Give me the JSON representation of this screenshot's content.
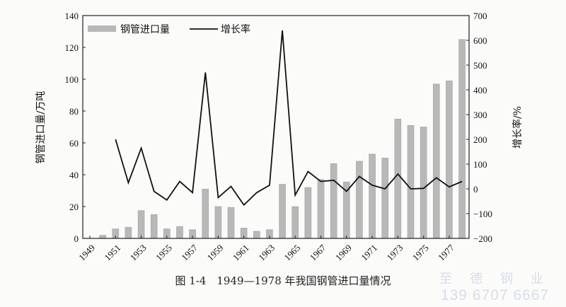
{
  "chart_data": {
    "type": "bar+line",
    "title": "图 1-4　1949—1978 年我国钢管进口量情况",
    "categories": [
      1949,
      1950,
      1951,
      1952,
      1953,
      1954,
      1955,
      1956,
      1957,
      1958,
      1959,
      1960,
      1961,
      1962,
      1963,
      1964,
      1965,
      1966,
      1967,
      1968,
      1969,
      1970,
      1971,
      1972,
      1973,
      1974,
      1975,
      1976,
      1977,
      1978
    ],
    "x_tick_labels": [
      "1949",
      "1951",
      "1953",
      "1955",
      "1957",
      "1959",
      "1961",
      "1963",
      "1965",
      "1967",
      "1969",
      "1971",
      "1973",
      "1975",
      "1977"
    ],
    "series": [
      {
        "name": "钢管进口量",
        "type": "bar",
        "axis": "left",
        "color": "#b8b8b8",
        "values": [
          0,
          2,
          6,
          7,
          17.5,
          15,
          6,
          7.5,
          5.5,
          31,
          20,
          19.5,
          6.5,
          4.5,
          5.5,
          34,
          20,
          32,
          37,
          47,
          35.5,
          48.5,
          53,
          50.5,
          75,
          71,
          70,
          97,
          99,
          125
        ]
      },
      {
        "name": "增长率",
        "type": "line",
        "axis": "right",
        "color": "#111111",
        "values": [
          null,
          null,
          200,
          25,
          165,
          -10,
          -45,
          30,
          -15,
          470,
          -35,
          10,
          -65,
          -15,
          15,
          640,
          -25,
          70,
          30,
          35,
          -10,
          50,
          15,
          0,
          60,
          0,
          2,
          45,
          8,
          30
        ]
      }
    ],
    "ylabel": "钢管进口量/万吨",
    "ylim": [
      0,
      140
    ],
    "yticks": [
      "0",
      "20",
      "40",
      "60",
      "80",
      "100",
      "120",
      "140"
    ],
    "y2label": "增长率/%",
    "y2lim": [
      -200,
      700
    ],
    "y2ticks": [
      "−200",
      "−100",
      "0",
      "100",
      "200",
      "300",
      "400",
      "500",
      "600",
      "700"
    ],
    "legend_position": "top-left",
    "grid": false
  },
  "watermark": {
    "line1": "至 德 钢 业",
    "line2": "139 6707 6667"
  }
}
